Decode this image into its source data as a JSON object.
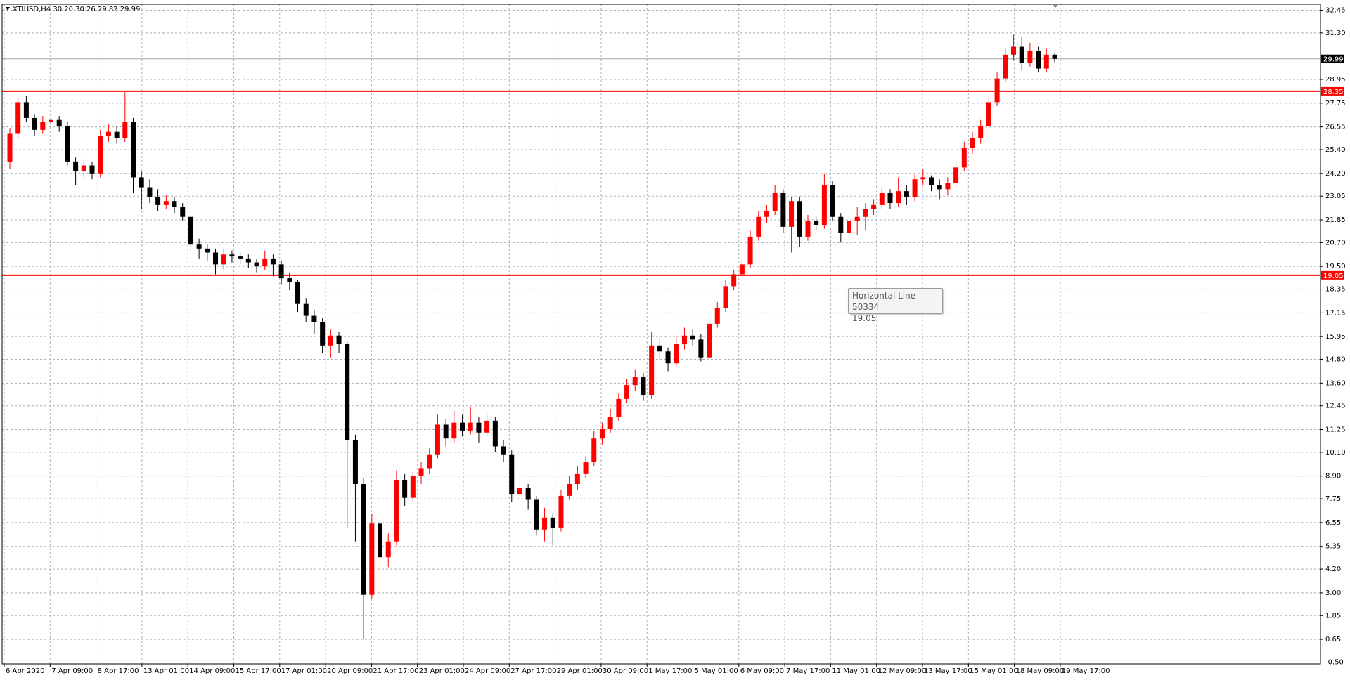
{
  "chart_data": {
    "type": "candlestick",
    "title": "XTIUSD,H4  30.20 30.26 29.82 29.99",
    "up_color": "#ff0000",
    "down_color": "#000000",
    "grid": true,
    "ylim": [
      -0.59,
      32.75
    ],
    "yticks": [
      32.45,
      {
        "value": 31.3,
        "label": "31.30"
      },
      28.95,
      27.75,
      26.55,
      {
        "value": 25.4,
        "label": "25.40"
      },
      {
        "value": 24.2,
        "label": "24.20"
      },
      23.05,
      21.85,
      {
        "value": 20.7,
        "label": "20.70"
      },
      {
        "value": 19.5,
        "label": "19.50"
      },
      18.35,
      17.15,
      15.95,
      {
        "value": 14.8,
        "label": "14.80"
      },
      {
        "value": 13.6,
        "label": "13.60"
      },
      12.45,
      11.25,
      {
        "value": 10.1,
        "label": "10.10"
      },
      {
        "value": 8.9,
        "label": "8.90"
      },
      7.75,
      6.55,
      5.35,
      {
        "value": 4.2,
        "label": "4.20"
      },
      {
        "value": 3,
        "label": "3.00"
      },
      1.85,
      0.65,
      {
        "value": -0.5,
        "label": "-0.50"
      }
    ],
    "x_labels": [
      "6 Apr 2020",
      "7 Apr 09:00",
      "8 Apr 17:00",
      "13 Apr 01:00",
      "14 Apr 09:00",
      "15 Apr 17:00",
      "17 Apr 01:00",
      "20 Apr 09:00",
      "21 Apr 17:00",
      "23 Apr 01:00",
      "24 Apr 09:00",
      "27 Apr 17:00",
      "29 Apr 01:00",
      "30 Apr 09:00",
      "1 May 17:00",
      "5 May 01:00",
      "6 May 09:00",
      "7 May 17:00",
      "11 May 01:00",
      "12 May 09:00",
      "13 May 17:00",
      "15 May 01:00",
      "18 May 09:00",
      "19 May 17:00"
    ],
    "hlines": [
      {
        "value": 28.35,
        "color": "#ff0000"
      },
      {
        "value": 19.05,
        "color": "#ff0000",
        "name": "Horizontal Line 50334"
      }
    ],
    "current_price_color": "#a0a0a0",
    "candles": [
      [
        24.8,
        26.5,
        24.4,
        26.2
      ],
      [
        26.2,
        28.0,
        26.0,
        27.8
      ],
      [
        27.8,
        28.1,
        26.8,
        27.0
      ],
      [
        27.0,
        27.2,
        26.1,
        26.4
      ],
      [
        26.4,
        27.1,
        26.2,
        26.8
      ],
      [
        26.8,
        27.2,
        26.5,
        26.9
      ],
      [
        26.9,
        27.1,
        26.3,
        26.6
      ],
      [
        26.6,
        26.8,
        24.6,
        24.8
      ],
      [
        24.8,
        25.0,
        23.6,
        24.3
      ],
      [
        24.3,
        24.9,
        24.0,
        24.6
      ],
      [
        24.6,
        24.8,
        23.9,
        24.2
      ],
      [
        24.2,
        26.4,
        24.0,
        26.1
      ],
      [
        26.1,
        26.7,
        25.8,
        26.3
      ],
      [
        26.3,
        26.6,
        25.7,
        26.0
      ],
      [
        26.0,
        28.3,
        25.8,
        26.8
      ],
      [
        26.8,
        27.0,
        23.2,
        24.0
      ],
      [
        24.0,
        24.3,
        22.4,
        23.5
      ],
      [
        23.5,
        23.9,
        22.7,
        23.0
      ],
      [
        23.0,
        23.4,
        22.3,
        22.6
      ],
      [
        22.6,
        23.1,
        22.4,
        22.8
      ],
      [
        22.8,
        23.0,
        22.2,
        22.5
      ],
      [
        22.5,
        22.7,
        21.8,
        22.0
      ],
      [
        22.0,
        22.1,
        20.3,
        20.6
      ],
      [
        20.6,
        20.9,
        19.9,
        20.4
      ],
      [
        20.4,
        20.6,
        19.8,
        20.2
      ],
      [
        20.2,
        20.4,
        19.1,
        19.6
      ],
      [
        19.6,
        20.4,
        19.3,
        20.1
      ],
      [
        20.1,
        20.3,
        19.7,
        20.0
      ],
      [
        20.0,
        20.2,
        19.6,
        19.9
      ],
      [
        19.9,
        20.1,
        19.4,
        19.7
      ],
      [
        19.7,
        19.9,
        19.2,
        19.5
      ],
      [
        19.5,
        20.3,
        19.3,
        19.9
      ],
      [
        19.9,
        20.1,
        19.0,
        19.6
      ],
      [
        19.6,
        19.8,
        18.6,
        18.9
      ],
      [
        18.9,
        19.2,
        18.3,
        18.7
      ],
      [
        18.7,
        18.8,
        17.2,
        17.6
      ],
      [
        17.6,
        17.9,
        16.7,
        17.0
      ],
      [
        17.0,
        17.3,
        16.1,
        16.7
      ],
      [
        16.7,
        16.9,
        15.1,
        15.5
      ],
      [
        15.5,
        16.3,
        14.9,
        16.0
      ],
      [
        16.0,
        16.2,
        15.1,
        15.6
      ],
      [
        15.6,
        15.7,
        6.3,
        10.7
      ],
      [
        10.7,
        11.0,
        5.6,
        8.5
      ],
      [
        8.5,
        8.8,
        0.65,
        2.9
      ],
      [
        2.9,
        7.0,
        2.7,
        6.5
      ],
      [
        6.5,
        6.9,
        4.2,
        4.8
      ],
      [
        4.8,
        6.0,
        4.3,
        5.6
      ],
      [
        5.6,
        9.2,
        5.4,
        8.7
      ],
      [
        8.7,
        9.0,
        7.4,
        7.8
      ],
      [
        7.8,
        9.1,
        7.6,
        8.9
      ],
      [
        8.9,
        9.6,
        8.5,
        9.3
      ],
      [
        9.3,
        10.3,
        9.0,
        10.0
      ],
      [
        10.0,
        12.0,
        9.8,
        11.5
      ],
      [
        11.5,
        11.8,
        10.4,
        10.8
      ],
      [
        10.8,
        12.2,
        10.6,
        11.6
      ],
      [
        11.6,
        12.0,
        10.9,
        11.2
      ],
      [
        11.2,
        12.4,
        11.0,
        11.6
      ],
      [
        11.6,
        11.9,
        10.6,
        11.1
      ],
      [
        11.1,
        12.0,
        10.9,
        11.7
      ],
      [
        11.7,
        11.9,
        10.1,
        10.4
      ],
      [
        10.4,
        10.7,
        9.6,
        10.0
      ],
      [
        10.0,
        10.2,
        7.6,
        8.0
      ],
      [
        8.0,
        8.8,
        7.7,
        8.3
      ],
      [
        8.3,
        8.5,
        7.2,
        7.7
      ],
      [
        7.7,
        7.9,
        5.9,
        6.2
      ],
      [
        6.2,
        7.3,
        5.6,
        6.8
      ],
      [
        6.8,
        7.0,
        5.4,
        6.3
      ],
      [
        6.3,
        8.2,
        6.1,
        7.9
      ],
      [
        7.9,
        8.9,
        7.7,
        8.5
      ],
      [
        8.5,
        9.4,
        8.2,
        9.0
      ],
      [
        9.0,
        9.9,
        8.8,
        9.6
      ],
      [
        9.6,
        11.2,
        9.4,
        10.8
      ],
      [
        10.8,
        11.6,
        10.5,
        11.3
      ],
      [
        11.3,
        12.3,
        11.1,
        11.9
      ],
      [
        11.9,
        13.1,
        11.7,
        12.8
      ],
      [
        12.8,
        13.8,
        12.6,
        13.5
      ],
      [
        13.5,
        14.3,
        13.2,
        13.9
      ],
      [
        13.9,
        14.1,
        12.7,
        13.0
      ],
      [
        13.0,
        16.2,
        12.8,
        15.5
      ],
      [
        15.5,
        15.9,
        14.8,
        15.2
      ],
      [
        15.2,
        15.4,
        14.2,
        14.6
      ],
      [
        14.6,
        16.0,
        14.4,
        15.6
      ],
      [
        15.6,
        16.4,
        15.3,
        16.0
      ],
      [
        16.0,
        16.3,
        15.5,
        15.8
      ],
      [
        15.8,
        16.1,
        14.7,
        14.9
      ],
      [
        14.9,
        16.9,
        14.7,
        16.6
      ],
      [
        16.6,
        17.7,
        16.4,
        17.4
      ],
      [
        17.4,
        18.8,
        17.2,
        18.5
      ],
      [
        18.5,
        19.3,
        18.3,
        19.1
      ],
      [
        19.1,
        19.9,
        18.9,
        19.6
      ],
      [
        19.6,
        21.3,
        19.4,
        21.0
      ],
      [
        21.0,
        22.3,
        20.8,
        22.0
      ],
      [
        22.0,
        22.6,
        21.7,
        22.3
      ],
      [
        22.3,
        23.6,
        22.1,
        23.2
      ],
      [
        23.2,
        23.4,
        21.2,
        21.5
      ],
      [
        21.5,
        23.0,
        20.2,
        22.8
      ],
      [
        22.8,
        23.0,
        20.5,
        21.0
      ],
      [
        21.0,
        22.1,
        20.8,
        21.8
      ],
      [
        21.8,
        22.0,
        21.3,
        21.6
      ],
      [
        21.6,
        24.2,
        21.4,
        23.6
      ],
      [
        23.6,
        23.8,
        21.8,
        22.0
      ],
      [
        22.0,
        22.2,
        20.7,
        21.2
      ],
      [
        21.2,
        22.1,
        21.0,
        21.8
      ],
      [
        21.8,
        22.5,
        21.1,
        22.0
      ],
      [
        22.0,
        22.7,
        21.3,
        22.4
      ],
      [
        22.4,
        22.9,
        22.1,
        22.6
      ],
      [
        22.6,
        23.5,
        22.4,
        23.2
      ],
      [
        23.2,
        23.4,
        22.4,
        22.7
      ],
      [
        22.7,
        24.0,
        22.5,
        23.3
      ],
      [
        23.3,
        23.6,
        22.6,
        23.0
      ],
      [
        23.0,
        24.2,
        22.8,
        23.9
      ],
      [
        23.9,
        24.4,
        23.6,
        24.0
      ],
      [
        24.0,
        24.1,
        23.3,
        23.6
      ],
      [
        23.6,
        23.9,
        22.9,
        23.4
      ],
      [
        23.4,
        24.0,
        23.1,
        23.7
      ],
      [
        23.7,
        24.8,
        23.5,
        24.5
      ],
      [
        24.5,
        25.8,
        24.3,
        25.5
      ],
      [
        25.5,
        26.3,
        25.2,
        26.0
      ],
      [
        26.0,
        26.9,
        25.7,
        26.6
      ],
      [
        26.6,
        28.1,
        26.4,
        27.8
      ],
      [
        27.8,
        29.3,
        27.6,
        29.0
      ],
      [
        29.0,
        30.5,
        28.8,
        30.2
      ],
      [
        30.2,
        31.2,
        29.9,
        30.6
      ],
      [
        30.6,
        31.1,
        29.4,
        29.8
      ],
      [
        29.8,
        30.8,
        29.6,
        30.4
      ],
      [
        30.4,
        30.6,
        29.3,
        29.5
      ],
      [
        29.5,
        30.5,
        29.3,
        30.2
      ],
      [
        30.2,
        30.26,
        29.82,
        29.99
      ]
    ]
  }
}
